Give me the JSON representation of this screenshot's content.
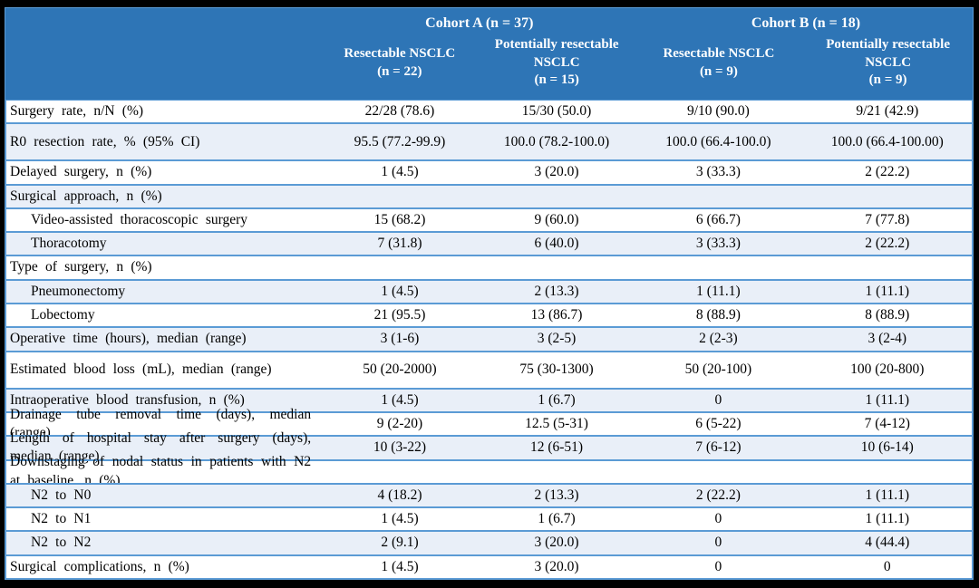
{
  "table": {
    "cohorts": [
      {
        "label": "Cohort A (n = 37)"
      },
      {
        "label": "Cohort B (n = 18)"
      }
    ],
    "columns": [
      {
        "name": "Resectable NSCLC",
        "n": "(n = 22)"
      },
      {
        "name": "Potentially resectable NSCLC",
        "n": "(n = 15)"
      },
      {
        "name": "Resectable NSCLC",
        "n": "(n = 9)"
      },
      {
        "name": "Potentially resectable NSCLC",
        "n": "(n = 9)"
      }
    ],
    "rows": [
      {
        "label": "Surgery rate, n/N (%)",
        "indent": false,
        "section": false,
        "values": [
          "22/28 (78.6)",
          "15/30 (50.0)",
          "9/10 (90.0)",
          "9/21 (42.9)"
        ]
      },
      {
        "label": "R0 resection rate, % (95% CI)",
        "indent": false,
        "section": false,
        "values": [
          "95.5 (77.2-99.9)",
          "100.0 (78.2-100.0)",
          "100.0 (66.4-100.0)",
          "100.0 (66.4-100.00)"
        ]
      },
      {
        "label": "Delayed surgery, n (%)",
        "indent": false,
        "section": false,
        "values": [
          "1 (4.5)",
          "3 (20.0)",
          "3 (33.3)",
          "2 (22.2)"
        ]
      },
      {
        "label": "Surgical approach, n (%)",
        "indent": false,
        "section": true,
        "values": [
          "",
          "",
          "",
          ""
        ]
      },
      {
        "label": "Video-assisted thoracoscopic surgery",
        "indent": true,
        "section": false,
        "values": [
          "15 (68.2)",
          "9 (60.0)",
          "6 (66.7)",
          "7 (77.8)"
        ]
      },
      {
        "label": "Thoracotomy",
        "indent": true,
        "section": false,
        "values": [
          "7 (31.8)",
          "6 (40.0)",
          "3 (33.3)",
          "2 (22.2)"
        ]
      },
      {
        "label": "Type of surgery, n (%)",
        "indent": false,
        "section": true,
        "values": [
          "",
          "",
          "",
          ""
        ]
      },
      {
        "label": "Pneumonectomy",
        "indent": true,
        "section": false,
        "values": [
          "1 (4.5)",
          "2 (13.3)",
          "1 (11.1)",
          "1 (11.1)"
        ]
      },
      {
        "label": "Lobectomy",
        "indent": true,
        "section": false,
        "values": [
          "21 (95.5)",
          "13 (86.7)",
          "8 (88.9)",
          "8 (88.9)"
        ]
      },
      {
        "label": "Operative time (hours), median (range)",
        "indent": false,
        "section": false,
        "values": [
          "3 (1-6)",
          "3 (2-5)",
          "2 (2-3)",
          "3 (2-4)"
        ]
      },
      {
        "label": "Estimated blood loss (mL), median (range)",
        "indent": false,
        "section": false,
        "values": [
          "50 (20-2000)",
          "75 (30-1300)",
          "50 (20-100)",
          "100 (20-800)"
        ]
      },
      {
        "label": "Intraoperative blood transfusion, n (%)",
        "indent": false,
        "section": false,
        "values": [
          "1 (4.5)",
          "1 (6.7)",
          "0",
          "1 (11.1)"
        ]
      },
      {
        "label": "Drainage tube removal time (days), median (range)",
        "indent": false,
        "section": false,
        "values": [
          "9 (2-20)",
          "12.5 (5-31)",
          "6 (5-22)",
          "7 (4-12)"
        ]
      },
      {
        "label": "Length of hospital stay after surgery (days), median (range)",
        "indent": false,
        "section": false,
        "values": [
          "10 (3-22)",
          "12 (6-51)",
          "7 (6-12)",
          "10 (6-14)"
        ]
      },
      {
        "label": "Downstaging of nodal status in patients with N2 at baseline, n (%)",
        "indent": false,
        "section": true,
        "values": [
          "",
          "",
          "",
          ""
        ]
      },
      {
        "label": "N2 to N0",
        "indent": true,
        "section": false,
        "values": [
          "4 (18.2)",
          "2 (13.3)",
          "2 (22.2)",
          "1 (11.1)"
        ]
      },
      {
        "label": "N2 to N1",
        "indent": true,
        "section": false,
        "values": [
          "1 (4.5)",
          "1 (6.7)",
          "0",
          "1 (11.1)"
        ]
      },
      {
        "label": "N2 to N2",
        "indent": true,
        "section": false,
        "values": [
          "2 (9.1)",
          "3 (20.0)",
          "0",
          "4 (44.4)"
        ]
      },
      {
        "label": "Surgical complications, n (%)",
        "indent": false,
        "section": false,
        "values": [
          "1 (4.5)",
          "3 (20.0)",
          "0",
          "0"
        ]
      }
    ]
  },
  "colors": {
    "header_bg": "#2E75B6",
    "header_text": "#FFFFFF",
    "band_bg": "#E9EFF8",
    "border": "#5B9BD5",
    "frame": "#000000",
    "body_text": "#000000"
  }
}
